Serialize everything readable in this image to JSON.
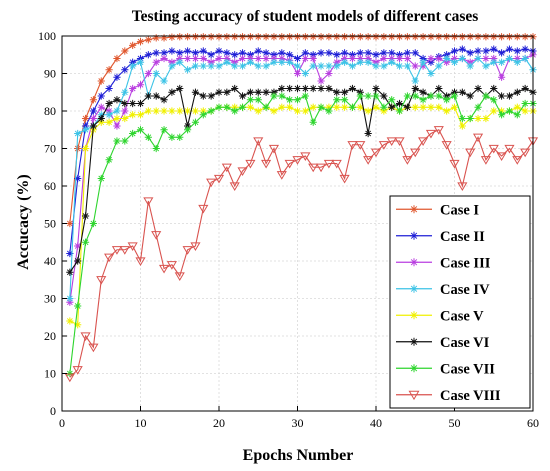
{
  "chart_data": {
    "type": "line",
    "title": "Testing accuracy of student models of different cases",
    "xlabel": "Epochs Number",
    "ylabel": "Accucacy (%)",
    "xlim": [
      0,
      60
    ],
    "ylim": [
      0,
      100
    ],
    "xticks": [
      0,
      10,
      20,
      30,
      40,
      50,
      60
    ],
    "yticks": [
      0,
      10,
      20,
      30,
      40,
      50,
      60,
      70,
      80,
      90,
      100
    ],
    "grid": true,
    "legend_position": "bottom-right",
    "x": [
      1,
      2,
      3,
      4,
      5,
      6,
      7,
      8,
      9,
      10,
      11,
      12,
      13,
      14,
      15,
      16,
      17,
      18,
      19,
      20,
      21,
      22,
      23,
      24,
      25,
      26,
      27,
      28,
      29,
      30,
      31,
      32,
      33,
      34,
      35,
      36,
      37,
      38,
      39,
      40,
      41,
      42,
      43,
      44,
      45,
      46,
      47,
      48,
      49,
      50,
      51,
      52,
      53,
      54,
      55,
      56,
      57,
      58,
      59,
      60
    ],
    "series": [
      {
        "name": "Case I",
        "color": "#e0582f",
        "marker": "star",
        "values": [
          50,
          70,
          78,
          83,
          88,
          91,
          94,
          96,
          97.5,
          98.5,
          99,
          99.5,
          99.5,
          99.7,
          99.8,
          99.8,
          99.8,
          99.8,
          99.8,
          99.8,
          99.8,
          99.8,
          99.8,
          99.8,
          99.8,
          99.8,
          99.8,
          99.8,
          99.8,
          99.8,
          99.8,
          99.8,
          99.8,
          99.8,
          99.8,
          99.8,
          99.8,
          99.8,
          99.8,
          99.8,
          99.8,
          99.8,
          99.8,
          99.8,
          99.8,
          99.8,
          99.8,
          99.8,
          99.8,
          99.8,
          99.8,
          99.8,
          99.8,
          99.8,
          99.8,
          99.8,
          99.8,
          99.8,
          99.8,
          99.8
        ]
      },
      {
        "name": "Case II",
        "color": "#1f1fd6",
        "marker": "star",
        "values": [
          42,
          62,
          76,
          80,
          84,
          86,
          89,
          91,
          93,
          94,
          95,
          95.5,
          95.5,
          96,
          95.5,
          96,
          95.5,
          96,
          95,
          96,
          95.5,
          95,
          95.5,
          95,
          96,
          95.5,
          95,
          95.5,
          95,
          94,
          95.5,
          95,
          95.5,
          95.5,
          95,
          95.5,
          95,
          95.5,
          95.5,
          95,
          95.5,
          95.5,
          95,
          95.5,
          95.5,
          94,
          93,
          94.5,
          95,
          96,
          96.5,
          95.5,
          96,
          96,
          96.5,
          95.5,
          96.5,
          96,
          96.5,
          96
        ]
      },
      {
        "name": "Case III",
        "color": "#b93ee0",
        "marker": "star",
        "values": [
          29,
          44,
          70,
          78,
          81,
          80,
          76,
          80,
          86,
          87,
          90,
          93,
          94,
          93,
          94,
          94,
          94,
          94,
          93,
          94,
          94,
          93,
          94,
          94,
          94,
          94,
          94,
          94,
          93.5,
          90,
          94,
          94,
          88,
          90,
          93,
          94,
          94,
          94,
          94,
          93,
          94,
          94,
          94,
          94,
          92,
          92,
          94,
          94,
          93,
          94,
          94,
          93,
          94,
          94,
          94,
          89,
          94,
          94,
          94,
          95
        ]
      },
      {
        "name": "Case IV",
        "color": "#3cc3e6",
        "marker": "star",
        "values": [
          30,
          74,
          75,
          76,
          79,
          79,
          80,
          85,
          92,
          93,
          84,
          90,
          88,
          92,
          93,
          91,
          92,
          92,
          92,
          92,
          93,
          92,
          92,
          93,
          92,
          92,
          93,
          93,
          93,
          92,
          90,
          92,
          92,
          92,
          92,
          93,
          92,
          93,
          93,
          92,
          92,
          93,
          92,
          92,
          88,
          93,
          90,
          92,
          94,
          93,
          94,
          92,
          94,
          92,
          93,
          93,
          94,
          93,
          94,
          91
        ]
      },
      {
        "name": "Case V",
        "color": "#f0f000",
        "marker": "star",
        "values": [
          24,
          23,
          70,
          75,
          77,
          77,
          78,
          78,
          79,
          79,
          80,
          80,
          80,
          80,
          80,
          80,
          80,
          80,
          80,
          81,
          81,
          81,
          81,
          81,
          80,
          81,
          80,
          81,
          81,
          80,
          80,
          81,
          81,
          81,
          81,
          81,
          81,
          81,
          80,
          81,
          80,
          81,
          80,
          81,
          81,
          81,
          81,
          81,
          80,
          81,
          76,
          78,
          78,
          78,
          80,
          80,
          80,
          81,
          80,
          80
        ]
      },
      {
        "name": "Case VI",
        "color": "#111111",
        "marker": "star",
        "values": [
          37,
          40,
          52,
          76,
          78,
          82,
          83,
          82,
          82,
          82,
          84,
          84,
          83,
          85,
          86,
          76,
          85,
          84,
          84,
          85,
          85,
          86,
          84,
          85,
          85,
          85,
          85,
          86,
          86,
          86,
          86,
          86,
          86,
          86,
          85,
          85,
          86,
          85,
          74,
          86,
          84,
          81,
          82,
          81,
          86,
          85,
          84,
          86,
          84,
          85,
          85,
          84,
          86,
          84,
          86,
          84,
          84,
          85,
          86,
          85
        ]
      },
      {
        "name": "Case VII",
        "color": "#2ed52e",
        "marker": "star",
        "values": [
          10,
          28,
          45,
          50,
          62,
          67,
          72,
          72,
          74,
          75,
          73,
          70,
          75,
          73,
          73,
          75,
          77,
          79,
          80,
          81,
          81,
          80,
          81,
          83,
          83,
          81,
          84,
          84,
          83,
          83,
          84,
          77,
          81,
          80,
          83,
          83,
          81,
          84,
          84,
          84,
          81,
          83,
          80,
          84,
          84,
          83,
          84,
          84,
          83,
          84,
          78,
          78,
          81,
          84,
          83,
          79,
          80,
          79,
          82,
          82
        ]
      },
      {
        "name": "Case VIII",
        "color": "#d9534f",
        "marker": "triangle-down",
        "values": [
          9,
          11,
          20,
          17,
          35,
          41,
          43,
          43,
          44,
          40,
          56,
          47,
          38,
          39,
          36,
          43,
          44,
          54,
          61,
          62,
          65,
          60,
          64,
          66,
          72,
          66,
          70,
          63,
          66,
          67,
          68,
          65,
          65,
          66,
          66,
          62,
          71,
          71,
          67,
          69,
          71,
          72,
          72,
          67,
          69,
          72,
          74,
          75,
          71,
          66,
          60,
          69,
          73,
          67,
          70,
          68,
          70,
          67,
          69,
          72
        ]
      }
    ]
  }
}
